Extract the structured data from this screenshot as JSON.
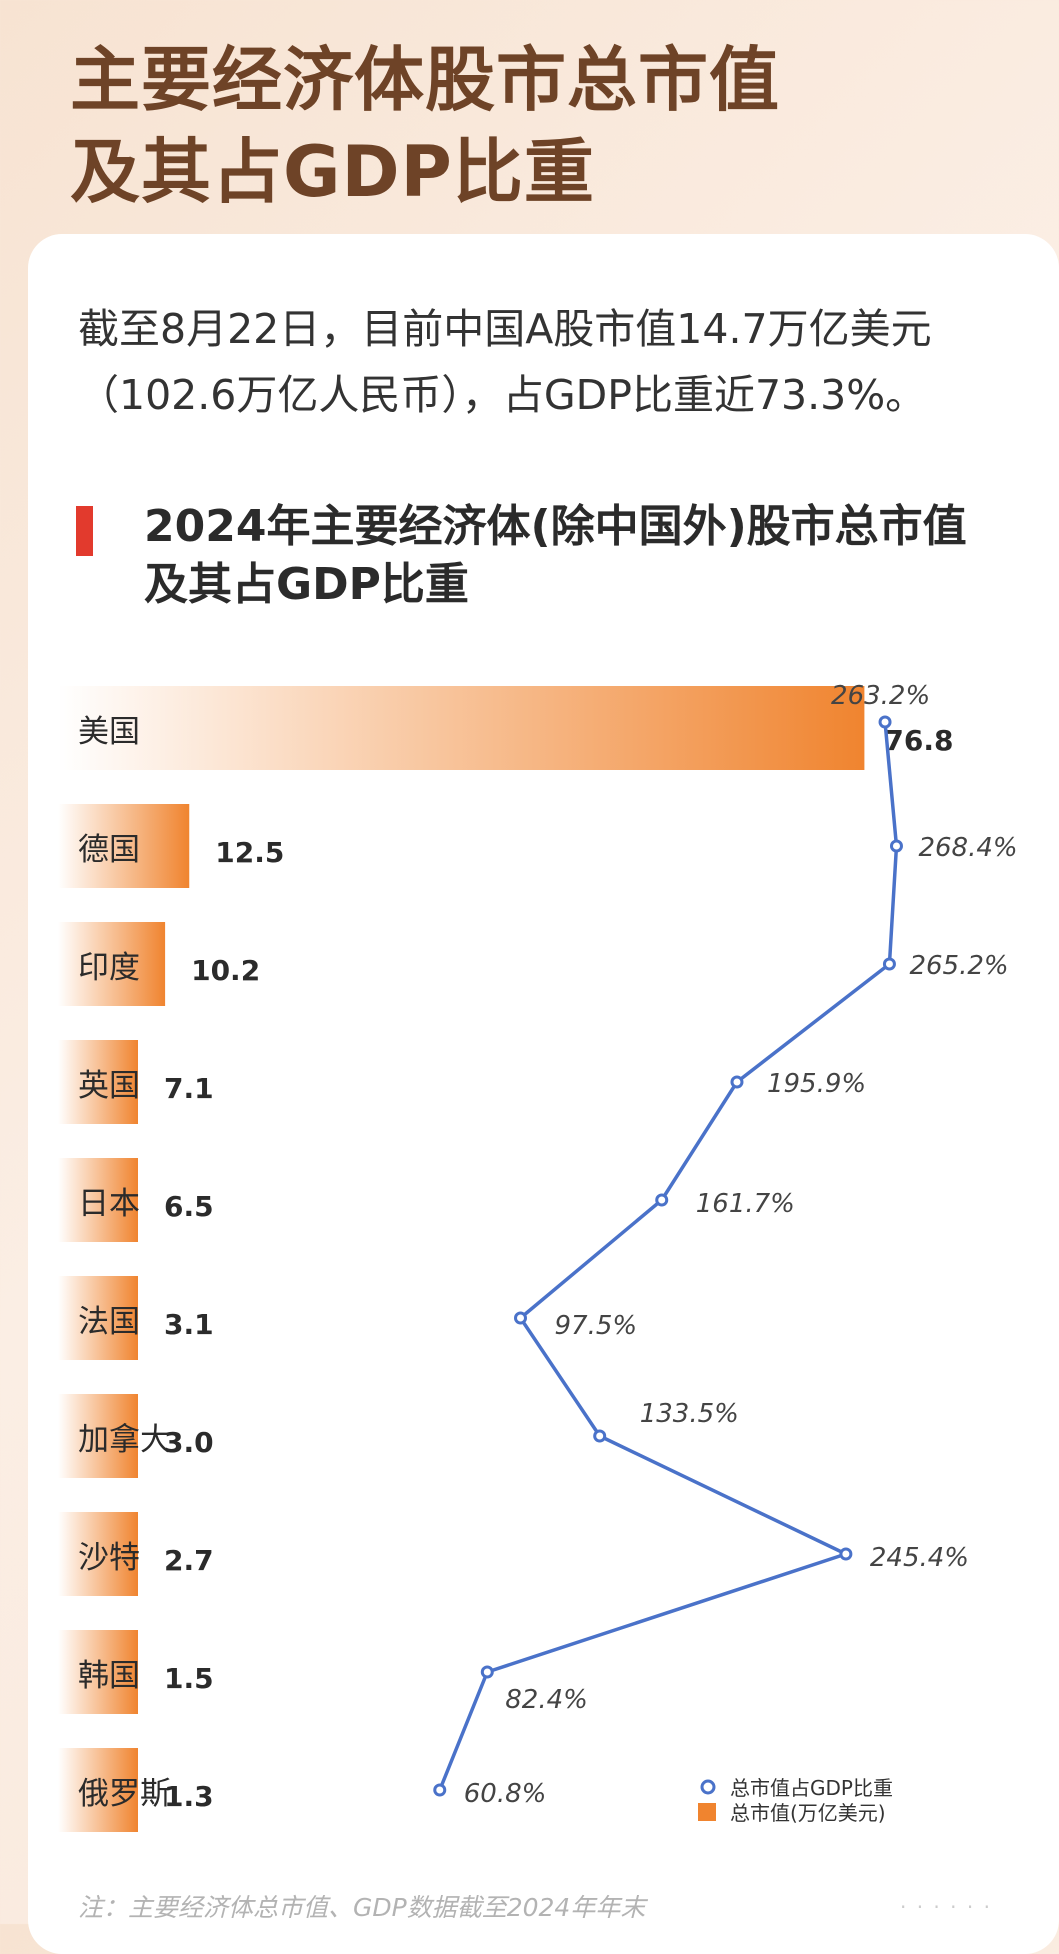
{
  "headline": [
    "主要经济体股市总市值",
    "及其占GDP比重"
  ],
  "intro": [
    "截至8月22日，目前中国A股市值14.7万亿美元",
    "（102.6万亿人民币），占GDP比重近73.3%。"
  ],
  "note": "注：主要经济体总市值、GDP数据截至2024年年末",
  "colors": {
    "bar": "#f0842f",
    "line": "#4a72c9",
    "accent": "#e23a2d",
    "headline": "#6e4327"
  },
  "chart_data": {
    "type": "bar",
    "orientation": "horizontal",
    "title": "2024年主要经济体(除中国外)股市总市值及其占GDP比重",
    "title_lines": [
      "2024年主要经济体(除中国外)股市总市值",
      "及其占GDP比重"
    ],
    "categories": [
      "美国",
      "德国",
      "印度",
      "英国",
      "日本",
      "法国",
      "加拿大",
      "沙特",
      "韩国",
      "俄罗斯"
    ],
    "series": [
      {
        "name": "总市值(万亿美元)",
        "type": "bar",
        "values": [
          76.8,
          12.5,
          10.2,
          7.1,
          6.5,
          3.1,
          3.0,
          2.7,
          1.5,
          1.3
        ],
        "labels": [
          "76.8",
          "12.5",
          "10.2",
          "7.1",
          "6.5",
          "3.1",
          "3.0",
          "2.7",
          "1.5",
          "1.3"
        ]
      },
      {
        "name": "总市值占GDP比重",
        "type": "line",
        "values": [
          263.2,
          268.4,
          265.2,
          195.9,
          161.7,
          97.5,
          133.5,
          245.4,
          82.4,
          60.8
        ],
        "labels": [
          "263.2%",
          "268.4%",
          "265.2%",
          "195.9%",
          "161.7%",
          "97.5%",
          "133.5%",
          "245.4%",
          "82.4%",
          "60.8%"
        ]
      }
    ],
    "legend_position": "bottom-right",
    "grid": false
  }
}
